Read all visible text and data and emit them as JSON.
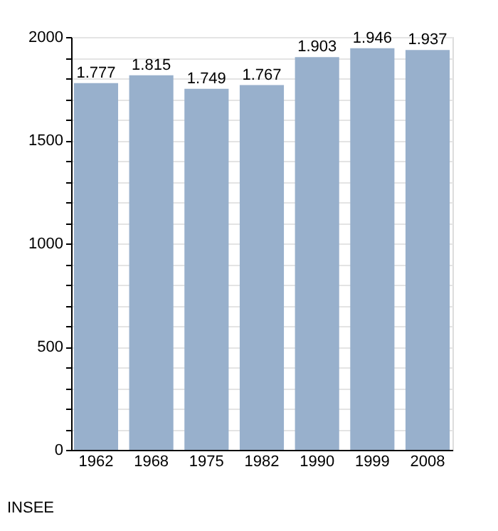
{
  "chart_data": {
    "type": "bar",
    "categories": [
      "1962",
      "1968",
      "1975",
      "1982",
      "1990",
      "1999",
      "2008"
    ],
    "values": [
      1777,
      1815,
      1749,
      1767,
      1903,
      1946,
      1937
    ],
    "value_labels": [
      "1.777",
      "1.815",
      "1.749",
      "1.767",
      "1.903",
      "1.946",
      "1.937"
    ],
    "color": "#98b0cc",
    "ylim": [
      0,
      2000
    ],
    "yticks": [
      0,
      {
        "value": 100,
        "label": null
      },
      {
        "value": 200,
        "label": null
      },
      {
        "value": 300,
        "label": null
      },
      {
        "value": 400,
        "label": null
      },
      500,
      {
        "value": 600,
        "label": null
      },
      {
        "value": 700,
        "label": null
      },
      {
        "value": 800,
        "label": null
      },
      {
        "value": 900,
        "label": null
      },
      1000,
      {
        "value": 1100,
        "label": null
      },
      {
        "value": 1200,
        "label": null
      },
      {
        "value": 1300,
        "label": null
      },
      {
        "value": 1400,
        "label": null
      },
      1500,
      {
        "value": 1600,
        "label": null
      },
      {
        "value": 1700,
        "label": null
      },
      {
        "value": 1800,
        "label": null
      },
      {
        "value": 1900,
        "label": null
      },
      2000
    ],
    "grid": true,
    "annotations": [
      "INSEE"
    ]
  }
}
